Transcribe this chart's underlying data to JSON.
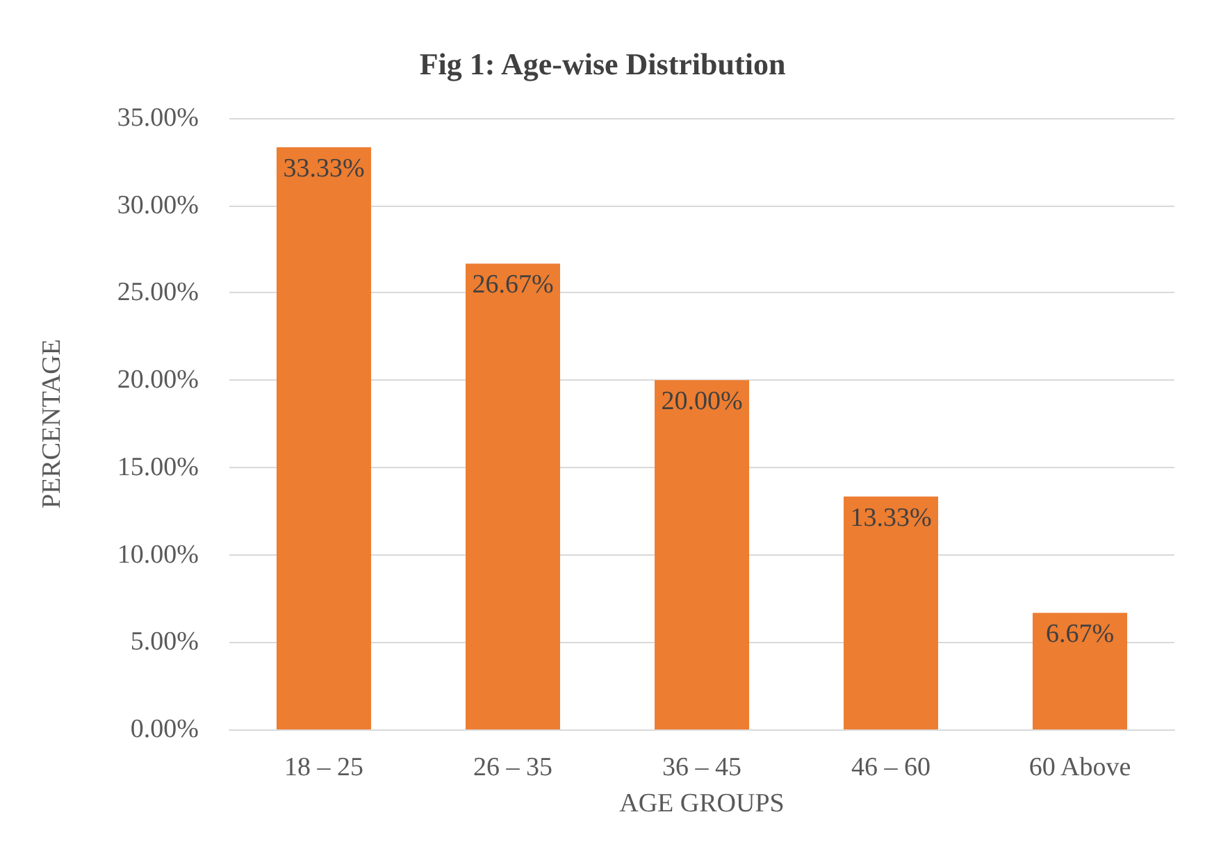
{
  "chart_data": {
    "type": "bar",
    "title": "Fig 1: Age-wise Distribution",
    "xlabel": "AGE GROUPS",
    "ylabel": "PERCENTAGE",
    "categories": [
      "18 – 25",
      "26 – 35",
      "36 – 45",
      "46 – 60",
      "60 Above"
    ],
    "values": [
      33.33,
      26.67,
      20.0,
      13.33,
      6.67
    ],
    "value_labels": [
      "33.33%",
      "26.67%",
      "20.00%",
      "13.33%",
      "6.67%"
    ],
    "color": "#ed7d31",
    "ylim": [
      0,
      35
    ],
    "yticks": [
      {
        "value": 0,
        "label": "0.00%"
      },
      {
        "value": 5,
        "label": "5.00%"
      },
      {
        "value": 10,
        "label": "10.00%"
      },
      {
        "value": 15,
        "label": "15.00%"
      },
      {
        "value": 20,
        "label": "20.00%"
      },
      {
        "value": 25,
        "label": "25.00%"
      },
      {
        "value": 30,
        "label": "30.00%"
      },
      {
        "value": 35,
        "label": "35.00%"
      }
    ],
    "grid": "y"
  }
}
